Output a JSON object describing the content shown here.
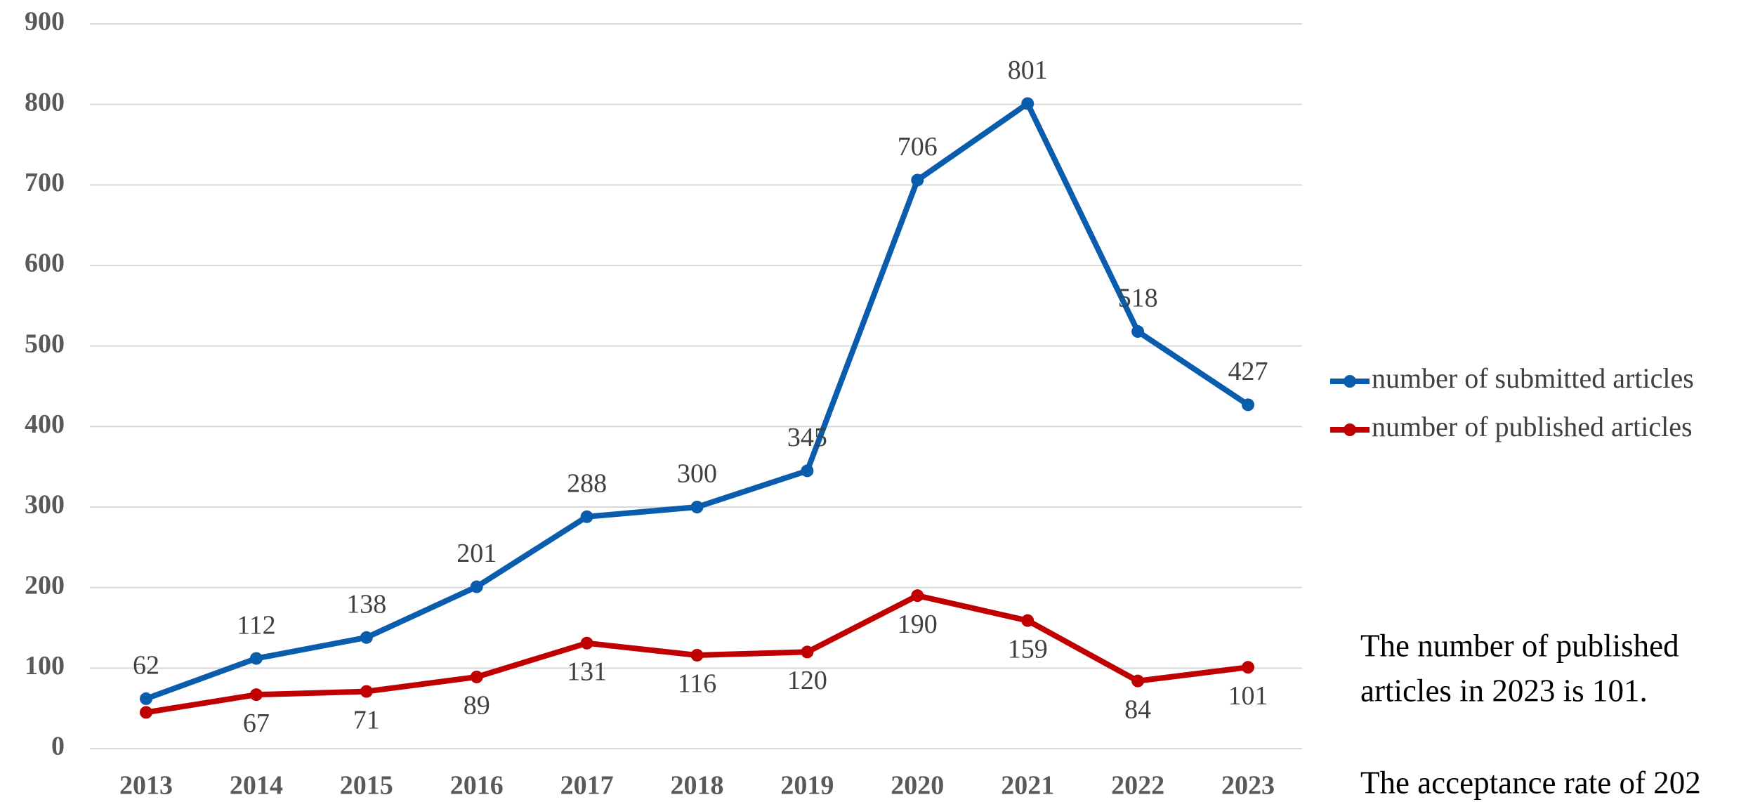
{
  "chart_data": {
    "type": "line",
    "categories": [
      "2013",
      "2014",
      "2015",
      "2016",
      "2017",
      "2018",
      "2019",
      "2020",
      "2021",
      "2022",
      "2023"
    ],
    "series": [
      {
        "name": "number of submitted articles",
        "color": "#0a5cad",
        "values": [
          62,
          112,
          138,
          201,
          288,
          300,
          345,
          706,
          801,
          518,
          427
        ]
      },
      {
        "name": "number of published articles",
        "color": "#c00000",
        "values": [
          45,
          67,
          71,
          89,
          131,
          116,
          120,
          190,
          159,
          84,
          101
        ],
        "value_labels": [
          null,
          "67",
          "71",
          "89",
          "131",
          "116",
          "120",
          "190",
          "159",
          "84",
          "101"
        ]
      }
    ],
    "ylim": [
      0,
      900
    ],
    "yticks": [
      0,
      100,
      200,
      300,
      400,
      500,
      600,
      700,
      800,
      900
    ],
    "grid": true,
    "annotations": [
      "The number of published",
      "articles in 2023 is 101.",
      "The acceptance rate of 202"
    ]
  }
}
